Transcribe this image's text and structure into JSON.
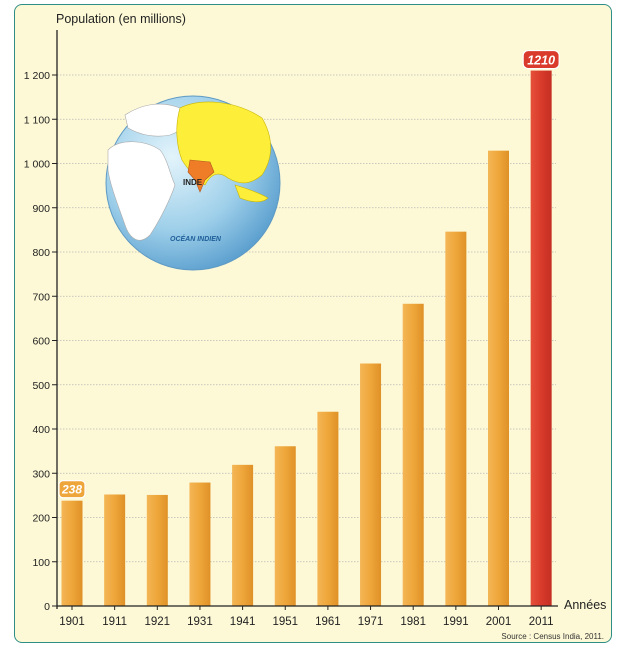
{
  "chart_data": {
    "type": "bar",
    "ylabel": "Population (en millions)",
    "xlabel": "Années",
    "source": "Source : Census India, 2011.",
    "categories": [
      "1901",
      "1911",
      "1921",
      "1931",
      "1941",
      "1951",
      "1961",
      "1971",
      "1981",
      "1991",
      "2001",
      "2011"
    ],
    "values": [
      238,
      252,
      251,
      279,
      319,
      361,
      439,
      548,
      683,
      846,
      1029,
      1210
    ],
    "ylim": [
      0,
      1250
    ],
    "yticks": [
      0,
      100,
      200,
      300,
      400,
      500,
      600,
      700,
      800,
      900,
      1000,
      1100,
      1200
    ],
    "ytick_labels": [
      "0",
      "100",
      "200",
      "300",
      "400",
      "500",
      "600",
      "700",
      "800",
      "900",
      "1 000",
      "1 100",
      "1 200"
    ],
    "data_labels": {
      "first": "238",
      "last": "1210"
    },
    "grid": true,
    "colors": {
      "bar": "#eea63a",
      "highlight": "#d93a2b",
      "grid": "#b8b8b8",
      "frame": "#2e8e86"
    },
    "inset": {
      "country_label": "INDE",
      "ocean_label": "OCÉAN INDIEN"
    }
  }
}
